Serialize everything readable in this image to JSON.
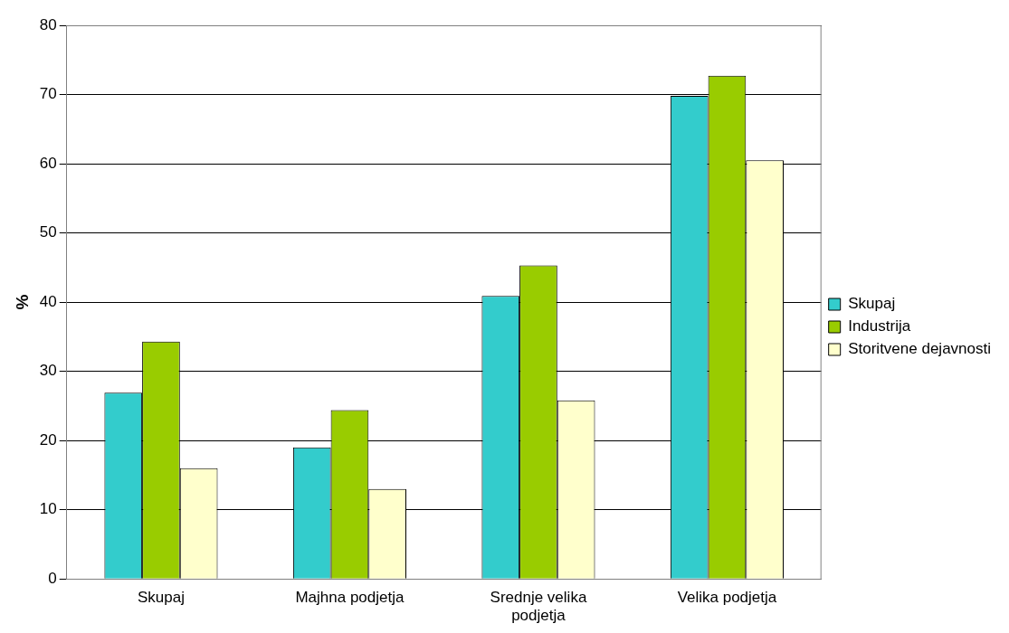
{
  "chart_data": {
    "type": "bar",
    "ylabel": "%",
    "categories": [
      "Skupaj",
      "Majhna podjetja",
      "Srednje velika podjetja",
      "Velika podjetja"
    ],
    "series": [
      {
        "name": "Skupaj",
        "color": "#33cccc",
        "values": [
          26.9,
          19.0,
          40.9,
          69.8
        ]
      },
      {
        "name": "Industrija",
        "color": "#99cc00",
        "values": [
          34.3,
          24.4,
          45.3,
          72.7
        ]
      },
      {
        "name": "Storitvene dejavnosti",
        "color": "#ffffcc",
        "values": [
          16.0,
          13.0,
          25.8,
          60.5
        ]
      }
    ],
    "ylim": [
      0,
      80
    ],
    "yticks": [
      0,
      10,
      20,
      30,
      40,
      50,
      60,
      70,
      80
    ],
    "grid": "y",
    "legend": "right"
  }
}
